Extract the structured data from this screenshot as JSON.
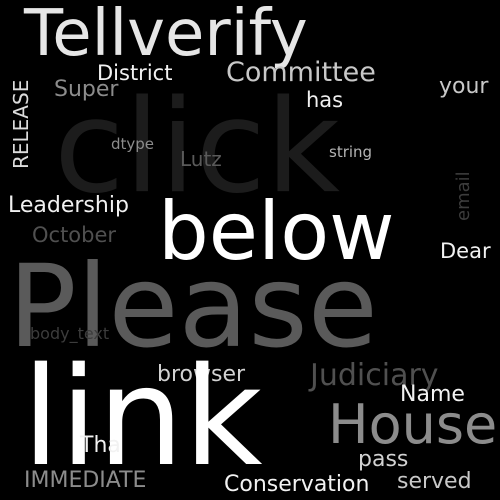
{
  "image": {
    "background_color": "#000000",
    "words": [
      {
        "id": "telleverify",
        "text": "Tellverify",
        "color": "#e6e6e6",
        "vertical": false
      },
      {
        "id": "district",
        "text": "District",
        "color": "#f2f2f2",
        "vertical": false
      },
      {
        "id": "committee",
        "text": "Committee",
        "color": "#c8c8c8",
        "vertical": false
      },
      {
        "id": "super",
        "text": "Super",
        "color": "#8c8c8c",
        "vertical": false
      },
      {
        "id": "has",
        "text": "has",
        "color": "#f0f0f0",
        "vertical": false
      },
      {
        "id": "your",
        "text": "your",
        "color": "#c8c8c8",
        "vertical": false
      },
      {
        "id": "release",
        "text": "RELEASE",
        "color": "#dcdcdc",
        "vertical": true
      },
      {
        "id": "click",
        "text": "click",
        "color": "#1c1c1c",
        "vertical": false
      },
      {
        "id": "dtype",
        "text": "dtype",
        "color": "#8c8c8c",
        "vertical": false
      },
      {
        "id": "lutz",
        "text": "Lutz",
        "color": "#5a5a5a",
        "vertical": false
      },
      {
        "id": "string",
        "text": "string",
        "color": "#b4b4b4",
        "vertical": false
      },
      {
        "id": "email",
        "text": "email",
        "color": "#3c3c3c",
        "vertical": true
      },
      {
        "id": "leadership",
        "text": "Leadership",
        "color": "#f0f0f0",
        "vertical": false
      },
      {
        "id": "october",
        "text": "October",
        "color": "#505050",
        "vertical": false
      },
      {
        "id": "below",
        "text": "below",
        "color": "#ffffff",
        "vertical": false
      },
      {
        "id": "dear",
        "text": "Dear",
        "color": "#f2f2f2",
        "vertical": false
      },
      {
        "id": "please",
        "text": "Please",
        "color": "#5a5a5a",
        "vertical": false
      },
      {
        "id": "body_text",
        "text": "body_text",
        "color": "#3c3c3c",
        "vertical": false
      },
      {
        "id": "browser",
        "text": "browser",
        "color": "#d2d2d2",
        "vertical": false
      },
      {
        "id": "judiciary",
        "text": "Judiciary",
        "color": "#505050",
        "vertical": false
      },
      {
        "id": "link",
        "text": "link",
        "color": "#ffffff",
        "vertical": false
      },
      {
        "id": "name",
        "text": "Name",
        "color": "#f2f2f2",
        "vertical": false
      },
      {
        "id": "house",
        "text": "House",
        "color": "#8c8c8c",
        "vertical": false
      },
      {
        "id": "tha",
        "text": "Tha",
        "color": "#f2f2f2",
        "vertical": false
      },
      {
        "id": "pass",
        "text": "pass",
        "color": "#d2d2d2",
        "vertical": false
      },
      {
        "id": "immediate",
        "text": "IMMEDIATE",
        "color": "#8c8c8c",
        "vertical": false
      },
      {
        "id": "conservation",
        "text": "Conservation",
        "color": "#f2f2f2",
        "vertical": false
      },
      {
        "id": "served",
        "text": "served",
        "color": "#c8c8c8",
        "vertical": false
      }
    ]
  }
}
